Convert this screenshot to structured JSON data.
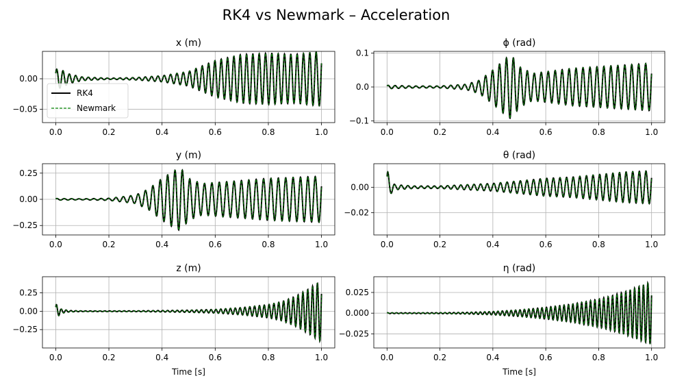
{
  "figure": {
    "title": "RK4 vs Newmark – Acceleration"
  },
  "colors": {
    "rk4": "#000000",
    "newmark": "#008000",
    "grid": "#b0b0b0",
    "frame": "#000000"
  },
  "legend": {
    "placement": "lower-left of first panel",
    "entries": [
      "RK4",
      "Newmark"
    ]
  },
  "chart_data": [
    {
      "type": "line",
      "title": "x (m)",
      "xlabel": "",
      "xlim": [
        -0.05,
        1.05
      ],
      "ylim": [
        -0.072,
        0.045
      ],
      "xticks": [
        0.0,
        0.2,
        0.4,
        0.6,
        0.8,
        1.0
      ],
      "xtick_labels": [
        "0.0",
        "0.2",
        "0.4",
        "0.6",
        "0.8",
        "1.0"
      ],
      "yticks": [
        0.0,
        -0.05
      ],
      "ytick_labels": [
        "0.00",
        "−0.05"
      ],
      "grid": true,
      "legend": true,
      "series": [
        {
          "name": "RK4",
          "style": "solid",
          "x": [
            0.0,
            0.02,
            0.05,
            0.1,
            0.2,
            0.3,
            0.4,
            0.5,
            0.6,
            0.7,
            0.8,
            0.9,
            1.0
          ],
          "y_envelope": [
            0.016,
            0.015,
            0.008,
            0.003,
            0.001,
            0.002,
            0.005,
            0.012,
            0.03,
            0.04,
            0.042,
            0.04,
            0.045
          ]
        },
        {
          "name": "Newmark",
          "style": "dashed",
          "x": [
            0.0,
            0.02,
            0.05,
            0.1,
            0.2,
            0.3,
            0.4,
            0.5,
            0.6,
            0.7,
            0.8,
            0.9,
            1.0
          ],
          "y_envelope": [
            0.016,
            0.015,
            0.008,
            0.003,
            0.001,
            0.002,
            0.005,
            0.012,
            0.03,
            0.04,
            0.042,
            0.04,
            0.045
          ]
        }
      ]
    },
    {
      "type": "line",
      "title": "ϕ (rad)",
      "xlabel": "",
      "xlim": [
        -0.05,
        1.05
      ],
      "ylim": [
        -0.105,
        0.105
      ],
      "xticks": [
        0.0,
        0.2,
        0.4,
        0.6,
        0.8,
        1.0
      ],
      "xtick_labels": [
        "0.0",
        "0.2",
        "0.4",
        "0.6",
        "0.8",
        "1.0"
      ],
      "yticks": [
        0.1,
        0.0,
        -0.1
      ],
      "ytick_labels": [
        "0.1",
        "0.0",
        "−0.1"
      ],
      "grid": true,
      "legend": false,
      "series": [
        {
          "name": "RK4",
          "style": "solid",
          "x": [
            0.0,
            0.1,
            0.2,
            0.3,
            0.35,
            0.4,
            0.45,
            0.47,
            0.5,
            0.55,
            0.6,
            0.7,
            0.8,
            0.9,
            1.0
          ],
          "y_envelope": [
            0.005,
            0.003,
            0.003,
            0.008,
            0.02,
            0.05,
            0.085,
            0.095,
            0.06,
            0.04,
            0.045,
            0.055,
            0.06,
            0.065,
            0.07
          ]
        },
        {
          "name": "Newmark",
          "style": "dashed",
          "x": [
            0.0,
            0.1,
            0.2,
            0.3,
            0.35,
            0.4,
            0.45,
            0.47,
            0.5,
            0.55,
            0.6,
            0.7,
            0.8,
            0.9,
            1.0
          ],
          "y_envelope": [
            0.005,
            0.003,
            0.003,
            0.008,
            0.02,
            0.05,
            0.085,
            0.095,
            0.06,
            0.04,
            0.045,
            0.055,
            0.06,
            0.065,
            0.07
          ]
        }
      ]
    },
    {
      "type": "line",
      "title": "y (m)",
      "xlabel": "",
      "xlim": [
        -0.05,
        1.05
      ],
      "ylim": [
        -0.34,
        0.34
      ],
      "xticks": [
        0.0,
        0.2,
        0.4,
        0.6,
        0.8,
        1.0
      ],
      "xtick_labels": [
        "0.0",
        "0.2",
        "0.4",
        "0.6",
        "0.8",
        "1.0"
      ],
      "yticks": [
        0.25,
        0.0,
        -0.25
      ],
      "ytick_labels": [
        "0.25",
        "0.00",
        "−0.25"
      ],
      "grid": true,
      "legend": false,
      "series": [
        {
          "name": "RK4",
          "style": "solid",
          "x": [
            0.0,
            0.1,
            0.2,
            0.3,
            0.35,
            0.4,
            0.45,
            0.47,
            0.5,
            0.55,
            0.6,
            0.7,
            0.8,
            0.9,
            1.0
          ],
          "y_envelope": [
            0.008,
            0.005,
            0.01,
            0.04,
            0.1,
            0.2,
            0.28,
            0.3,
            0.2,
            0.15,
            0.16,
            0.18,
            0.2,
            0.21,
            0.22
          ]
        },
        {
          "name": "Newmark",
          "style": "dashed",
          "x": [
            0.0,
            0.1,
            0.2,
            0.3,
            0.35,
            0.4,
            0.45,
            0.47,
            0.5,
            0.55,
            0.6,
            0.7,
            0.8,
            0.9,
            1.0
          ],
          "y_envelope": [
            0.008,
            0.005,
            0.01,
            0.04,
            0.1,
            0.2,
            0.28,
            0.3,
            0.2,
            0.15,
            0.16,
            0.18,
            0.2,
            0.21,
            0.22
          ]
        }
      ]
    },
    {
      "type": "line",
      "title": "θ (rad)",
      "xlabel": "",
      "xlim": [
        -0.05,
        1.05
      ],
      "ylim": [
        -0.0375,
        0.0185
      ],
      "xticks": [
        0.0,
        0.2,
        0.4,
        0.6,
        0.8,
        1.0
      ],
      "xtick_labels": [
        "0.0",
        "0.2",
        "0.4",
        "0.6",
        "0.8",
        "1.0"
      ],
      "yticks": [
        0.0,
        -0.02
      ],
      "ytick_labels": [
        "0.00",
        "−0.02"
      ],
      "grid": true,
      "legend": false,
      "series": [
        {
          "name": "RK4",
          "style": "solid",
          "x": [
            0.0,
            0.01,
            0.03,
            0.1,
            0.2,
            0.3,
            0.4,
            0.5,
            0.6,
            0.7,
            0.8,
            0.9,
            1.0
          ],
          "y_envelope": [
            0.015,
            0.006,
            0.002,
            0.001,
            0.001,
            0.002,
            0.003,
            0.005,
            0.007,
            0.008,
            0.01,
            0.012,
            0.013
          ]
        },
        {
          "name": "Newmark",
          "style": "dashed",
          "x": [
            0.0,
            0.01,
            0.03,
            0.1,
            0.2,
            0.3,
            0.4,
            0.5,
            0.6,
            0.7,
            0.8,
            0.9,
            1.0
          ],
          "y_envelope": [
            0.015,
            0.006,
            0.002,
            0.001,
            0.001,
            0.002,
            0.003,
            0.005,
            0.007,
            0.008,
            0.01,
            0.012,
            0.013
          ]
        }
      ]
    },
    {
      "type": "line",
      "title": "z (m)",
      "xlabel": "Time [s]",
      "xlim": [
        -0.05,
        1.05
      ],
      "ylim": [
        -0.5,
        0.47
      ],
      "xticks": [
        0.0,
        0.2,
        0.4,
        0.6,
        0.8,
        1.0
      ],
      "xtick_labels": [
        "0.0",
        "0.2",
        "0.4",
        "0.6",
        "0.8",
        "1.0"
      ],
      "yticks": [
        0.25,
        0.0,
        -0.25
      ],
      "ytick_labels": [
        "0.25",
        "0.00",
        "−0.25"
      ],
      "grid": true,
      "legend": false,
      "series": [
        {
          "name": "RK4",
          "style": "solid",
          "x": [
            0.0,
            0.02,
            0.05,
            0.1,
            0.2,
            0.3,
            0.4,
            0.5,
            0.6,
            0.7,
            0.8,
            0.85,
            0.9,
            0.95,
            1.0
          ],
          "y_envelope": [
            0.1,
            0.03,
            0.01,
            0.005,
            0.005,
            0.006,
            0.01,
            0.015,
            0.025,
            0.05,
            0.09,
            0.13,
            0.2,
            0.3,
            0.42
          ]
        },
        {
          "name": "Newmark",
          "style": "dashed",
          "x": [
            0.0,
            0.02,
            0.05,
            0.1,
            0.2,
            0.3,
            0.4,
            0.5,
            0.6,
            0.7,
            0.8,
            0.85,
            0.9,
            0.95,
            1.0
          ],
          "y_envelope": [
            0.1,
            0.03,
            0.01,
            0.005,
            0.005,
            0.006,
            0.01,
            0.015,
            0.025,
            0.05,
            0.09,
            0.13,
            0.2,
            0.3,
            0.42
          ]
        }
      ]
    },
    {
      "type": "line",
      "title": "η (rad)",
      "xlabel": "Time [s]",
      "xlim": [
        -0.05,
        1.05
      ],
      "ylim": [
        -0.042,
        0.044
      ],
      "xticks": [
        0.0,
        0.2,
        0.4,
        0.6,
        0.8,
        1.0
      ],
      "xtick_labels": [
        "0.0",
        "0.2",
        "0.4",
        "0.6",
        "0.8",
        "1.0"
      ],
      "yticks": [
        0.025,
        0.0,
        -0.025
      ],
      "ytick_labels": [
        "0.025",
        "0.000",
        "−0.025"
      ],
      "grid": true,
      "legend": false,
      "series": [
        {
          "name": "RK4",
          "style": "solid",
          "x": [
            0.0,
            0.1,
            0.2,
            0.3,
            0.4,
            0.5,
            0.6,
            0.7,
            0.8,
            0.85,
            0.9,
            0.95,
            1.0
          ],
          "y_envelope": [
            0.0005,
            0.0005,
            0.0006,
            0.001,
            0.002,
            0.004,
            0.007,
            0.011,
            0.017,
            0.021,
            0.026,
            0.032,
            0.038
          ]
        },
        {
          "name": "Newmark",
          "style": "dashed",
          "x": [
            0.0,
            0.1,
            0.2,
            0.3,
            0.4,
            0.5,
            0.6,
            0.7,
            0.8,
            0.85,
            0.9,
            0.95,
            1.0
          ],
          "y_envelope": [
            0.0005,
            0.0005,
            0.0006,
            0.001,
            0.002,
            0.004,
            0.007,
            0.011,
            0.017,
            0.021,
            0.026,
            0.032,
            0.038
          ]
        }
      ]
    }
  ]
}
